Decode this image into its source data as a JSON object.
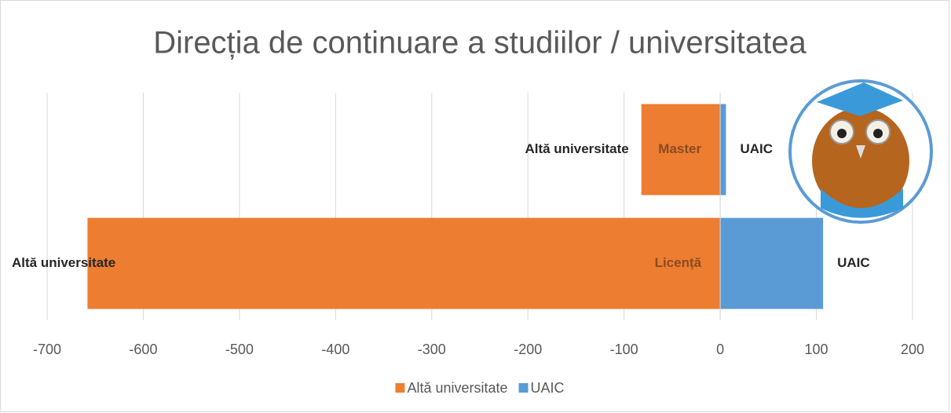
{
  "chart_data": {
    "type": "bar",
    "orientation": "horizontal",
    "title": "Direcția de continuare a studiilor / universitatea",
    "categories": [
      "Master",
      "Licență"
    ],
    "series": [
      {
        "name": "Altă universitate",
        "color": "#ed7d31",
        "values": [
          -82,
          -658
        ]
      },
      {
        "name": "UAIC",
        "color": "#5b9bd5",
        "values": [
          6,
          107
        ]
      }
    ],
    "xlim": [
      -700,
      200
    ],
    "xticks": [
      -700,
      -600,
      -500,
      -400,
      -300,
      -200,
      -100,
      0,
      100,
      200
    ],
    "grid": true,
    "legend": "bottom"
  }
}
